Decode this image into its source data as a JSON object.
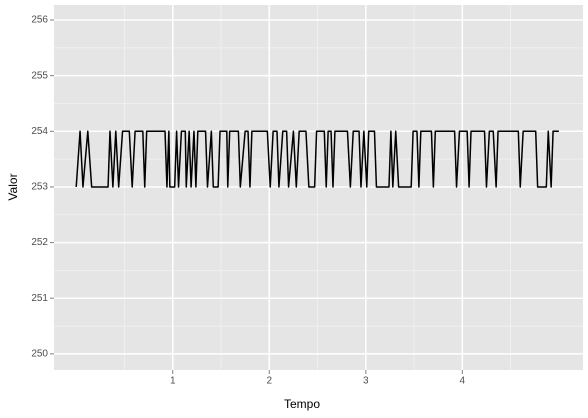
{
  "chart_data": {
    "type": "line",
    "x_label": "Tempo",
    "y_label": "Valor",
    "x": [
      0.0,
      0.04,
      0.07,
      0.12,
      0.16,
      0.33,
      0.35,
      0.38,
      0.41,
      0.44,
      0.48,
      0.55,
      0.58,
      0.61,
      0.69,
      0.71,
      0.73,
      0.92,
      0.94,
      0.96,
      0.97,
      1.02,
      1.04,
      1.06,
      1.09,
      1.13,
      1.14,
      1.17,
      1.19,
      1.22,
      1.24,
      1.26,
      1.34,
      1.36,
      1.4,
      1.42,
      1.47,
      1.49,
      1.56,
      1.57,
      1.59,
      1.68,
      1.7,
      1.75,
      1.78,
      1.8,
      1.82,
      1.98,
      2.01,
      2.04,
      2.08,
      2.1,
      2.14,
      2.18,
      2.2,
      2.25,
      2.28,
      2.31,
      2.38,
      2.41,
      2.47,
      2.49,
      2.57,
      2.59,
      2.61,
      2.64,
      2.66,
      2.68,
      2.81,
      2.84,
      2.87,
      2.93,
      2.95,
      2.98,
      3.01,
      3.03,
      3.09,
      3.11,
      3.24,
      3.26,
      3.28,
      3.31,
      3.34,
      3.47,
      3.49,
      3.53,
      3.55,
      3.57,
      3.68,
      3.7,
      3.72,
      3.92,
      3.94,
      3.97,
      4.05,
      4.07,
      4.09,
      4.23,
      4.25,
      4.28,
      4.32,
      4.35,
      4.37,
      4.58,
      4.6,
      4.63,
      4.76,
      4.78,
      4.87,
      4.89,
      4.92,
      4.94,
      5.0
    ],
    "values": [
      253,
      254,
      253,
      254,
      253,
      253,
      254,
      253,
      254,
      253,
      254,
      254,
      253,
      254,
      254,
      253,
      254,
      254,
      253,
      254,
      253,
      253,
      254,
      253,
      254,
      254,
      253,
      254,
      253,
      254,
      253,
      254,
      254,
      253,
      254,
      253,
      253,
      254,
      254,
      253,
      254,
      254,
      253,
      254,
      254,
      253,
      254,
      254,
      253,
      254,
      254,
      253,
      254,
      254,
      253,
      254,
      253,
      254,
      254,
      253,
      253,
      254,
      254,
      253,
      254,
      254,
      253,
      254,
      254,
      253,
      254,
      254,
      253,
      254,
      253,
      254,
      254,
      253,
      253,
      254,
      253,
      254,
      253,
      253,
      254,
      254,
      253,
      254,
      254,
      253,
      254,
      254,
      253,
      254,
      254,
      253,
      254,
      254,
      253,
      254,
      254,
      253,
      254,
      254,
      253,
      254,
      254,
      253,
      253,
      254,
      253,
      254,
      254
    ],
    "color": "#000000",
    "xlim": [
      -0.23,
      5.25
    ],
    "xticks": [
      1,
      2,
      3,
      4
    ],
    "ylim": [
      249.71,
      256.27
    ],
    "yticks": [
      250,
      251,
      252,
      253,
      254,
      255,
      256
    ],
    "grid": true
  }
}
